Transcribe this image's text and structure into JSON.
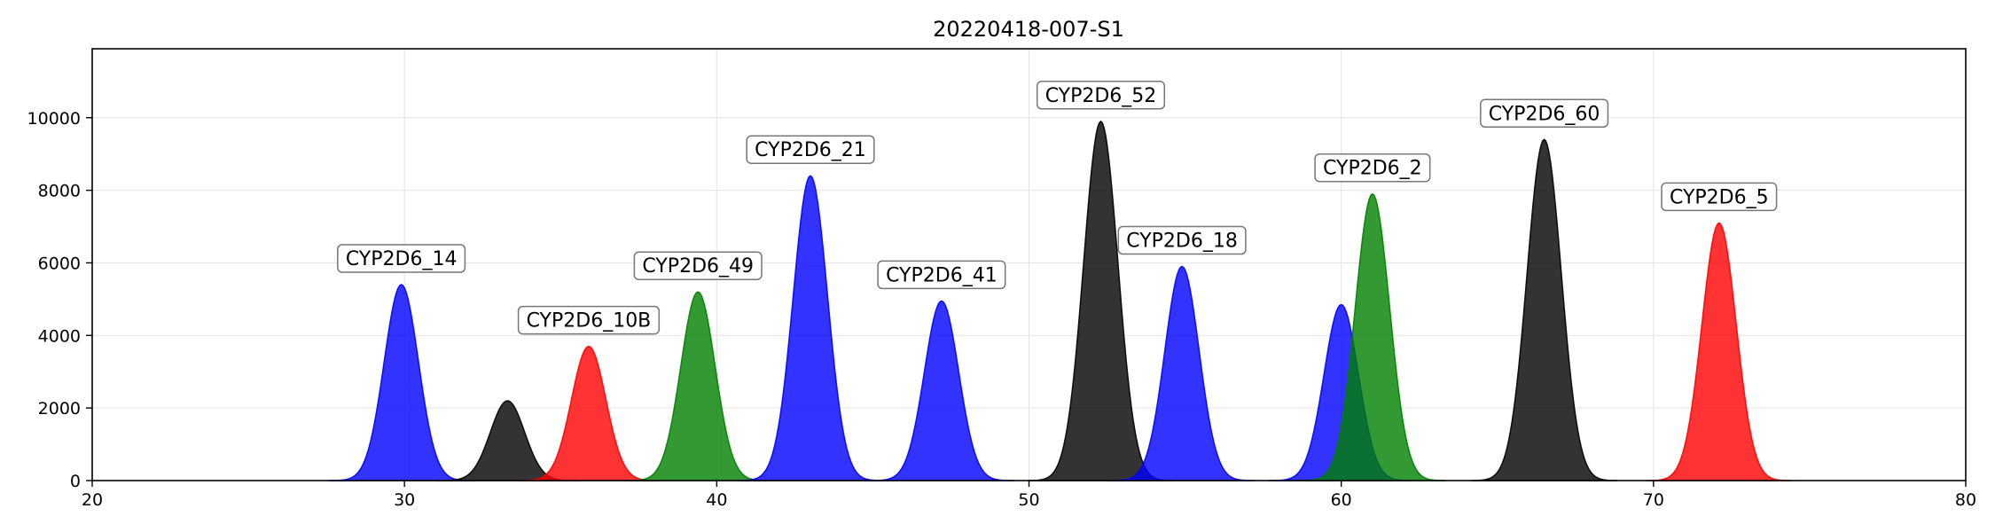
{
  "chart_data": {
    "type": "area",
    "title": "20220418-007-S1",
    "xlabel": "",
    "ylabel": "",
    "xlim": [
      20,
      80
    ],
    "ylim": [
      0,
      11900
    ],
    "x_ticks": [
      20,
      30,
      40,
      50,
      60,
      70,
      80
    ],
    "y_ticks": [
      0,
      2000,
      4000,
      6000,
      8000,
      10000
    ],
    "grid": true,
    "series_colors": {
      "blue": "#0000ff",
      "black": "#000000",
      "red": "#ff0000",
      "green": "#008000"
    },
    "fill_opacity": 0.8,
    "peaks": [
      {
        "center": 29.9,
        "height": 5400,
        "sigma": 0.55,
        "color": "blue",
        "label": "CYP2D6_14"
      },
      {
        "center": 33.3,
        "height": 2200,
        "sigma": 0.55,
        "color": "black",
        "label": ""
      },
      {
        "center": 35.9,
        "height": 3700,
        "sigma": 0.55,
        "color": "red",
        "label": "CYP2D6_10B"
      },
      {
        "center": 39.4,
        "height": 5200,
        "sigma": 0.55,
        "color": "green",
        "label": "CYP2D6_49"
      },
      {
        "center": 43.0,
        "height": 8400,
        "sigma": 0.55,
        "color": "blue",
        "label": "CYP2D6_21"
      },
      {
        "center": 47.2,
        "height": 4950,
        "sigma": 0.55,
        "color": "blue",
        "label": "CYP2D6_41"
      },
      {
        "center": 52.3,
        "height": 9900,
        "sigma": 0.55,
        "color": "black",
        "label": "CYP2D6_52"
      },
      {
        "center": 54.9,
        "height": 5900,
        "sigma": 0.55,
        "color": "blue",
        "label": "CYP2D6_18"
      },
      {
        "center": 60.0,
        "height": 4850,
        "sigma": 0.55,
        "color": "blue",
        "label": ""
      },
      {
        "center": 61.0,
        "height": 7900,
        "sigma": 0.55,
        "color": "green",
        "label": "CYP2D6_2"
      },
      {
        "center": 66.5,
        "height": 9400,
        "sigma": 0.55,
        "color": "black",
        "label": "CYP2D6_60"
      },
      {
        "center": 72.1,
        "height": 7100,
        "sigma": 0.55,
        "color": "red",
        "label": "CYP2D6_5"
      }
    ]
  }
}
